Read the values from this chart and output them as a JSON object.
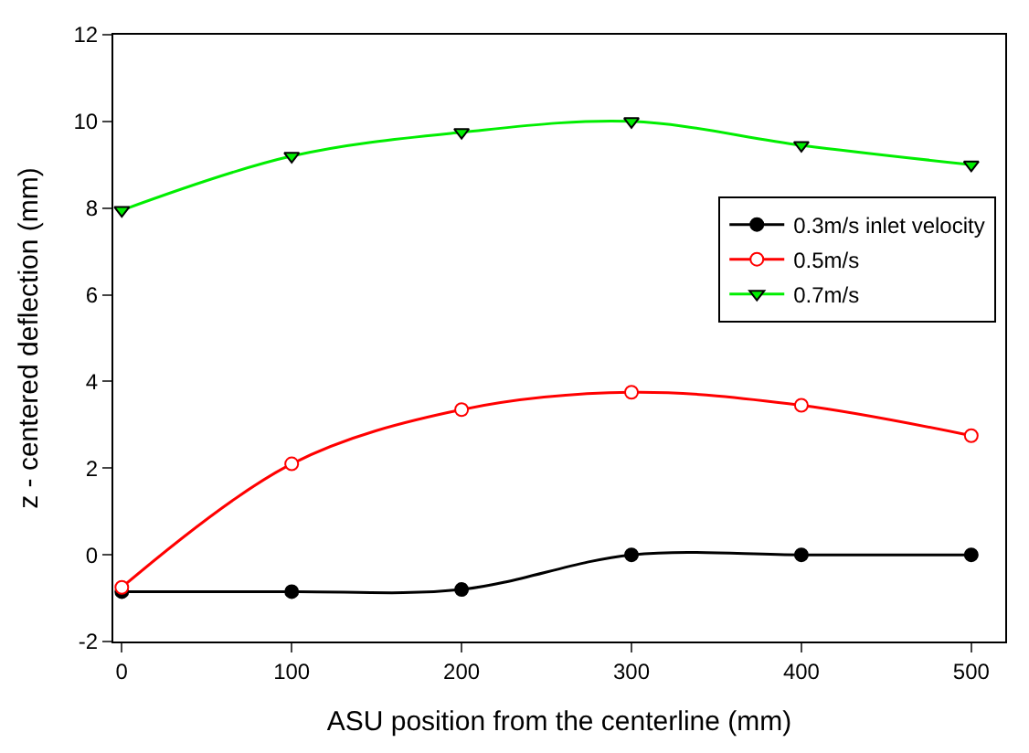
{
  "chart_data": {
    "type": "line",
    "xlabel": "ASU position from the centerline (mm)",
    "ylabel": "z - centered deflection (mm)",
    "x": [
      0,
      100,
      200,
      300,
      400,
      500
    ],
    "series": [
      {
        "name": "0.3m/s inlet velocity",
        "color": "#000000",
        "marker": "circle",
        "values": [
          -0.85,
          -0.85,
          -0.8,
          0.0,
          0.0,
          0.0
        ]
      },
      {
        "name": "0.5m/s",
        "color": "#ff0000",
        "marker": "circle",
        "values": [
          -0.75,
          2.1,
          3.35,
          3.75,
          3.45,
          2.75
        ]
      },
      {
        "name": "0.7m/s",
        "color": "#00ee00",
        "marker": "triangle",
        "values": [
          7.95,
          9.2,
          9.75,
          10.0,
          9.45,
          9.0
        ]
      }
    ],
    "xlim": [
      -5,
      520
    ],
    "xticks": [
      0,
      100,
      200,
      300,
      400,
      500
    ],
    "ylim": [
      -2,
      12
    ],
    "yticks": [
      -2,
      0,
      2,
      4,
      6,
      8,
      10,
      12
    ],
    "grid": false,
    "legend": "right",
    "line_style": "solid"
  }
}
